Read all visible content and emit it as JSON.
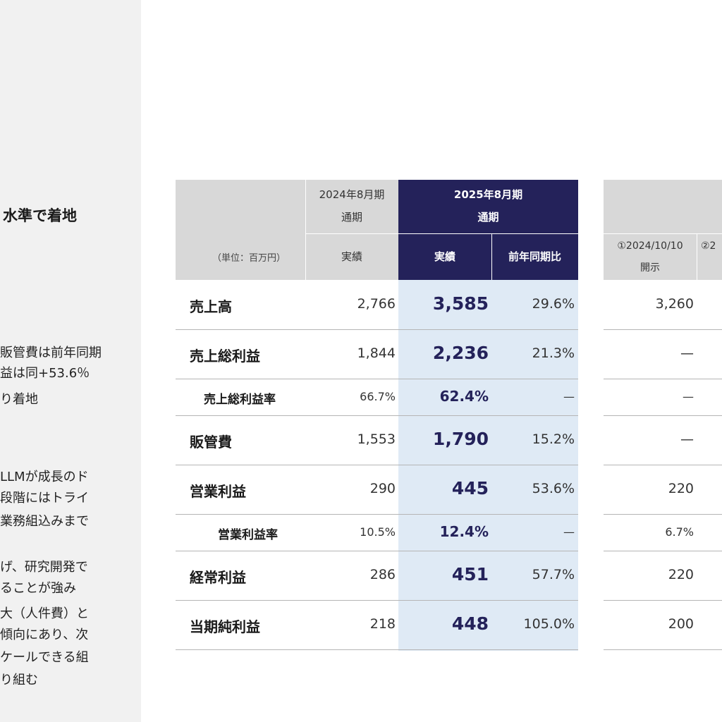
{
  "left_panel": {
    "heading": "水準で着地",
    "lines": [
      "販管費は前年同期",
      "益は同+53.6％",
      "り着地",
      "LLMが成長のド",
      "段階にはトライ",
      "業務組込みまで",
      "げ、研究開発で",
      "ることが強み",
      "大（人件費）と",
      "傾向にあり、次",
      "ケールできる組",
      "り組む"
    ]
  },
  "table": {
    "unit": "（単位：百万円）",
    "col_prev": {
      "period": "2024年8月期",
      "scope": "通期",
      "sub": "実績"
    },
    "col_cur": {
      "period": "2025年8月期",
      "scope": "通期",
      "sub_actual": "実績",
      "sub_yoy": "前年同期比"
    },
    "rows": [
      {
        "label": "売上高",
        "prev": "2,766",
        "cur": "3,585",
        "yoy": "29.6%"
      },
      {
        "label": "売上総利益",
        "prev": "1,844",
        "cur": "2,236",
        "yoy": "21.3%"
      },
      {
        "label": "売上総利益率",
        "prev": "66.7%",
        "cur": "62.4%",
        "yoy": "—"
      },
      {
        "label": "販管費",
        "prev": "1,553",
        "cur": "1,790",
        "yoy": "15.2%"
      },
      {
        "label": "営業利益",
        "prev": "290",
        "cur": "445",
        "yoy": "53.6%"
      },
      {
        "label": "営業利益率",
        "prev": "10.5%",
        "cur": "12.4%",
        "yoy": "—"
      },
      {
        "label": "経常利益",
        "prev": "286",
        "cur": "451",
        "yoy": "57.7%"
      },
      {
        "label": "当期純利益",
        "prev": "218",
        "cur": "448",
        "yoy": "105.0%"
      }
    ]
  },
  "plan_table": {
    "col1_line1": "①2024/10/10",
    "col1_line2": "開示",
    "col2_fragment": "②2",
    "rows": [
      "3,260",
      "—",
      "—",
      "—",
      "220",
      "6.7%",
      "220",
      "200"
    ]
  }
}
